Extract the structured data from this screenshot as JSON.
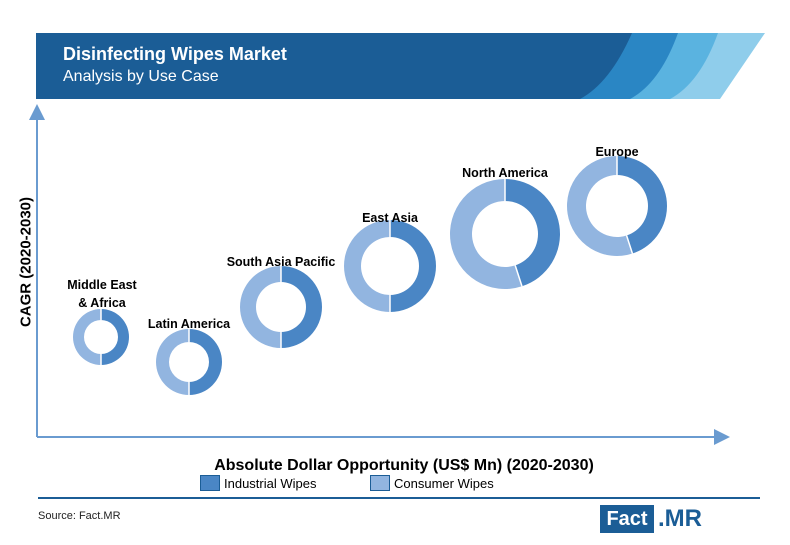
{
  "header": {
    "title": "Disinfecting Wipes Market",
    "subtitle": "Analysis by Use Case"
  },
  "colors": {
    "industrial": "#4a86c5",
    "consumer": "#92b5e0",
    "brand": "#1b5d96",
    "axis": "#6a9bd0"
  },
  "chart_data": {
    "type": "donut-bubble",
    "xlabel": "Absolute Dollar Opportunity (US$ Mn) (2020-2030)",
    "ylabel": "CAGR (2020-2030)",
    "series_names": [
      "Industrial Wipes",
      "Consumer Wipes"
    ],
    "legend_position": "bottom",
    "grid": false,
    "regions": [
      {
        "label": "Middle East & Africa",
        "industrial_share": 0.5,
        "consumer_share": 0.5
      },
      {
        "label": "Latin America",
        "industrial_share": 0.5,
        "consumer_share": 0.5
      },
      {
        "label": "South Asia Pacific",
        "industrial_share": 0.5,
        "consumer_share": 0.5
      },
      {
        "label": "East Asia",
        "industrial_share": 0.5,
        "consumer_share": 0.5
      },
      {
        "label": "North America",
        "industrial_share": 0.45,
        "consumer_share": 0.55
      },
      {
        "label": "Europe",
        "industrial_share": 0.45,
        "consumer_share": 0.55
      }
    ]
  },
  "legend": {
    "industrial_label": "Industrial Wipes",
    "consumer_label": "Consumer Wipes"
  },
  "footer": {
    "source": "Source: Fact.MR",
    "logo_left": "Fact",
    "logo_right": ".MR"
  }
}
